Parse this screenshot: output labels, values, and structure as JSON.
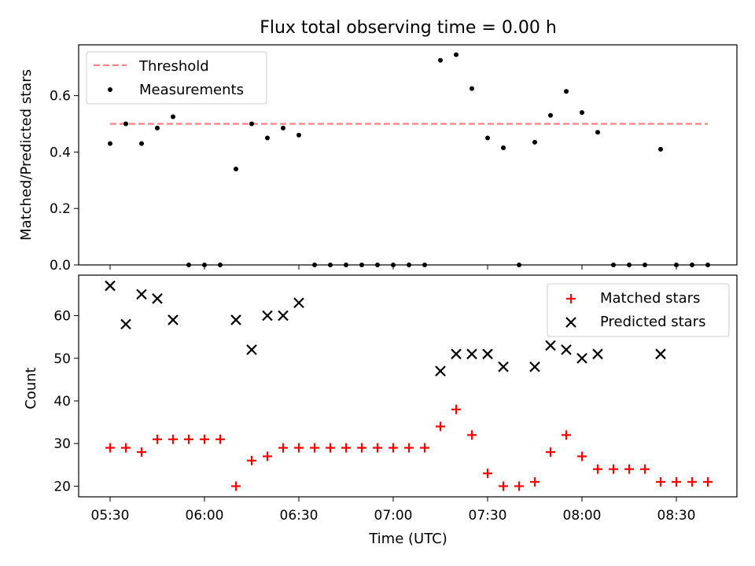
{
  "chart_data": [
    {
      "type": "scatter",
      "title": "Flux total observing time = 0.00 h",
      "xlabel": "",
      "ylabel": "Matched/Predicted stars",
      "ylim": [
        0,
        0.78
      ],
      "yticks": [
        "0.0",
        "0.2",
        "0.4",
        "0.6"
      ],
      "grid": false,
      "legend_position": "top-left",
      "threshold": {
        "name": "Threshold",
        "value": 0.5,
        "x_start": "05:30",
        "x_end": "08:40",
        "color": "#ff8080"
      },
      "series": [
        {
          "name": "Measurements",
          "color": "#000000",
          "points": [
            [
              "05:30",
              0.43
            ],
            [
              "05:35",
              0.5
            ],
            [
              "05:40",
              0.43
            ],
            [
              "05:45",
              0.485
            ],
            [
              "05:50",
              0.525
            ],
            [
              "05:55",
              0.0
            ],
            [
              "06:00",
              0.0
            ],
            [
              "06:05",
              0.0
            ],
            [
              "06:10",
              0.34
            ],
            [
              "06:15",
              0.5
            ],
            [
              "06:20",
              0.45
            ],
            [
              "06:25",
              0.485
            ],
            [
              "06:30",
              0.46
            ],
            [
              "06:35",
              0.0
            ],
            [
              "06:40",
              0.0
            ],
            [
              "06:45",
              0.0
            ],
            [
              "06:50",
              0.0
            ],
            [
              "06:55",
              0.0
            ],
            [
              "07:00",
              0.0
            ],
            [
              "07:05",
              0.0
            ],
            [
              "07:10",
              0.0
            ],
            [
              "07:15",
              0.725
            ],
            [
              "07:20",
              0.745
            ],
            [
              "07:25",
              0.625
            ],
            [
              "07:30",
              0.45
            ],
            [
              "07:35",
              0.415
            ],
            [
              "07:40",
              0.0
            ],
            [
              "07:45",
              0.435
            ],
            [
              "07:50",
              0.53
            ],
            [
              "07:55",
              0.615
            ],
            [
              "08:00",
              0.54
            ],
            [
              "08:05",
              0.47
            ],
            [
              "08:10",
              0.0
            ],
            [
              "08:15",
              0.0
            ],
            [
              "08:20",
              0.0
            ],
            [
              "08:25",
              0.41
            ],
            [
              "08:30",
              0.0
            ],
            [
              "08:35",
              0.0
            ],
            [
              "08:40",
              0.0
            ]
          ]
        }
      ]
    },
    {
      "type": "scatter",
      "title": "",
      "xlabel": "Time (UTC)",
      "ylabel": "Count",
      "ylim": [
        17.5,
        69.5
      ],
      "yticks": [
        "20",
        "30",
        "40",
        "50",
        "60"
      ],
      "xticks": [
        "05:30",
        "06:00",
        "06:30",
        "07:00",
        "07:30",
        "08:00",
        "08:30"
      ],
      "grid": false,
      "legend_position": "top-right",
      "series": [
        {
          "name": "Matched stars",
          "marker": "+",
          "color": "#ff0000",
          "points": [
            [
              "05:30",
              29
            ],
            [
              "05:35",
              29
            ],
            [
              "05:40",
              28
            ],
            [
              "05:45",
              31
            ],
            [
              "05:50",
              31
            ],
            [
              "05:55",
              31
            ],
            [
              "06:00",
              31
            ],
            [
              "06:05",
              31
            ],
            [
              "06:10",
              20
            ],
            [
              "06:15",
              26
            ],
            [
              "06:20",
              27
            ],
            [
              "06:25",
              29
            ],
            [
              "06:30",
              29
            ],
            [
              "06:35",
              29
            ],
            [
              "06:40",
              29
            ],
            [
              "06:45",
              29
            ],
            [
              "06:50",
              29
            ],
            [
              "06:55",
              29
            ],
            [
              "07:00",
              29
            ],
            [
              "07:05",
              29
            ],
            [
              "07:10",
              29
            ],
            [
              "07:15",
              34
            ],
            [
              "07:20",
              38
            ],
            [
              "07:25",
              32
            ],
            [
              "07:30",
              23
            ],
            [
              "07:35",
              20
            ],
            [
              "07:40",
              20
            ],
            [
              "07:45",
              21
            ],
            [
              "07:50",
              28
            ],
            [
              "07:55",
              32
            ],
            [
              "08:00",
              27
            ],
            [
              "08:05",
              24
            ],
            [
              "08:10",
              24
            ],
            [
              "08:15",
              24
            ],
            [
              "08:20",
              24
            ],
            [
              "08:25",
              21
            ],
            [
              "08:30",
              21
            ],
            [
              "08:35",
              21
            ],
            [
              "08:40",
              21
            ]
          ]
        },
        {
          "name": "Predicted stars",
          "marker": "x",
          "color": "#000000",
          "points": [
            [
              "05:30",
              67
            ],
            [
              "05:35",
              58
            ],
            [
              "05:40",
              65
            ],
            [
              "05:45",
              64
            ],
            [
              "05:50",
              59
            ],
            [
              "06:10",
              59
            ],
            [
              "06:15",
              52
            ],
            [
              "06:20",
              60
            ],
            [
              "06:25",
              60
            ],
            [
              "06:30",
              63
            ],
            [
              "07:15",
              47
            ],
            [
              "07:20",
              51
            ],
            [
              "07:25",
              51
            ],
            [
              "07:30",
              51
            ],
            [
              "07:35",
              48
            ],
            [
              "07:45",
              48
            ],
            [
              "07:50",
              53
            ],
            [
              "07:55",
              52
            ],
            [
              "08:00",
              50
            ],
            [
              "08:05",
              51
            ],
            [
              "08:25",
              51
            ]
          ]
        }
      ]
    }
  ]
}
